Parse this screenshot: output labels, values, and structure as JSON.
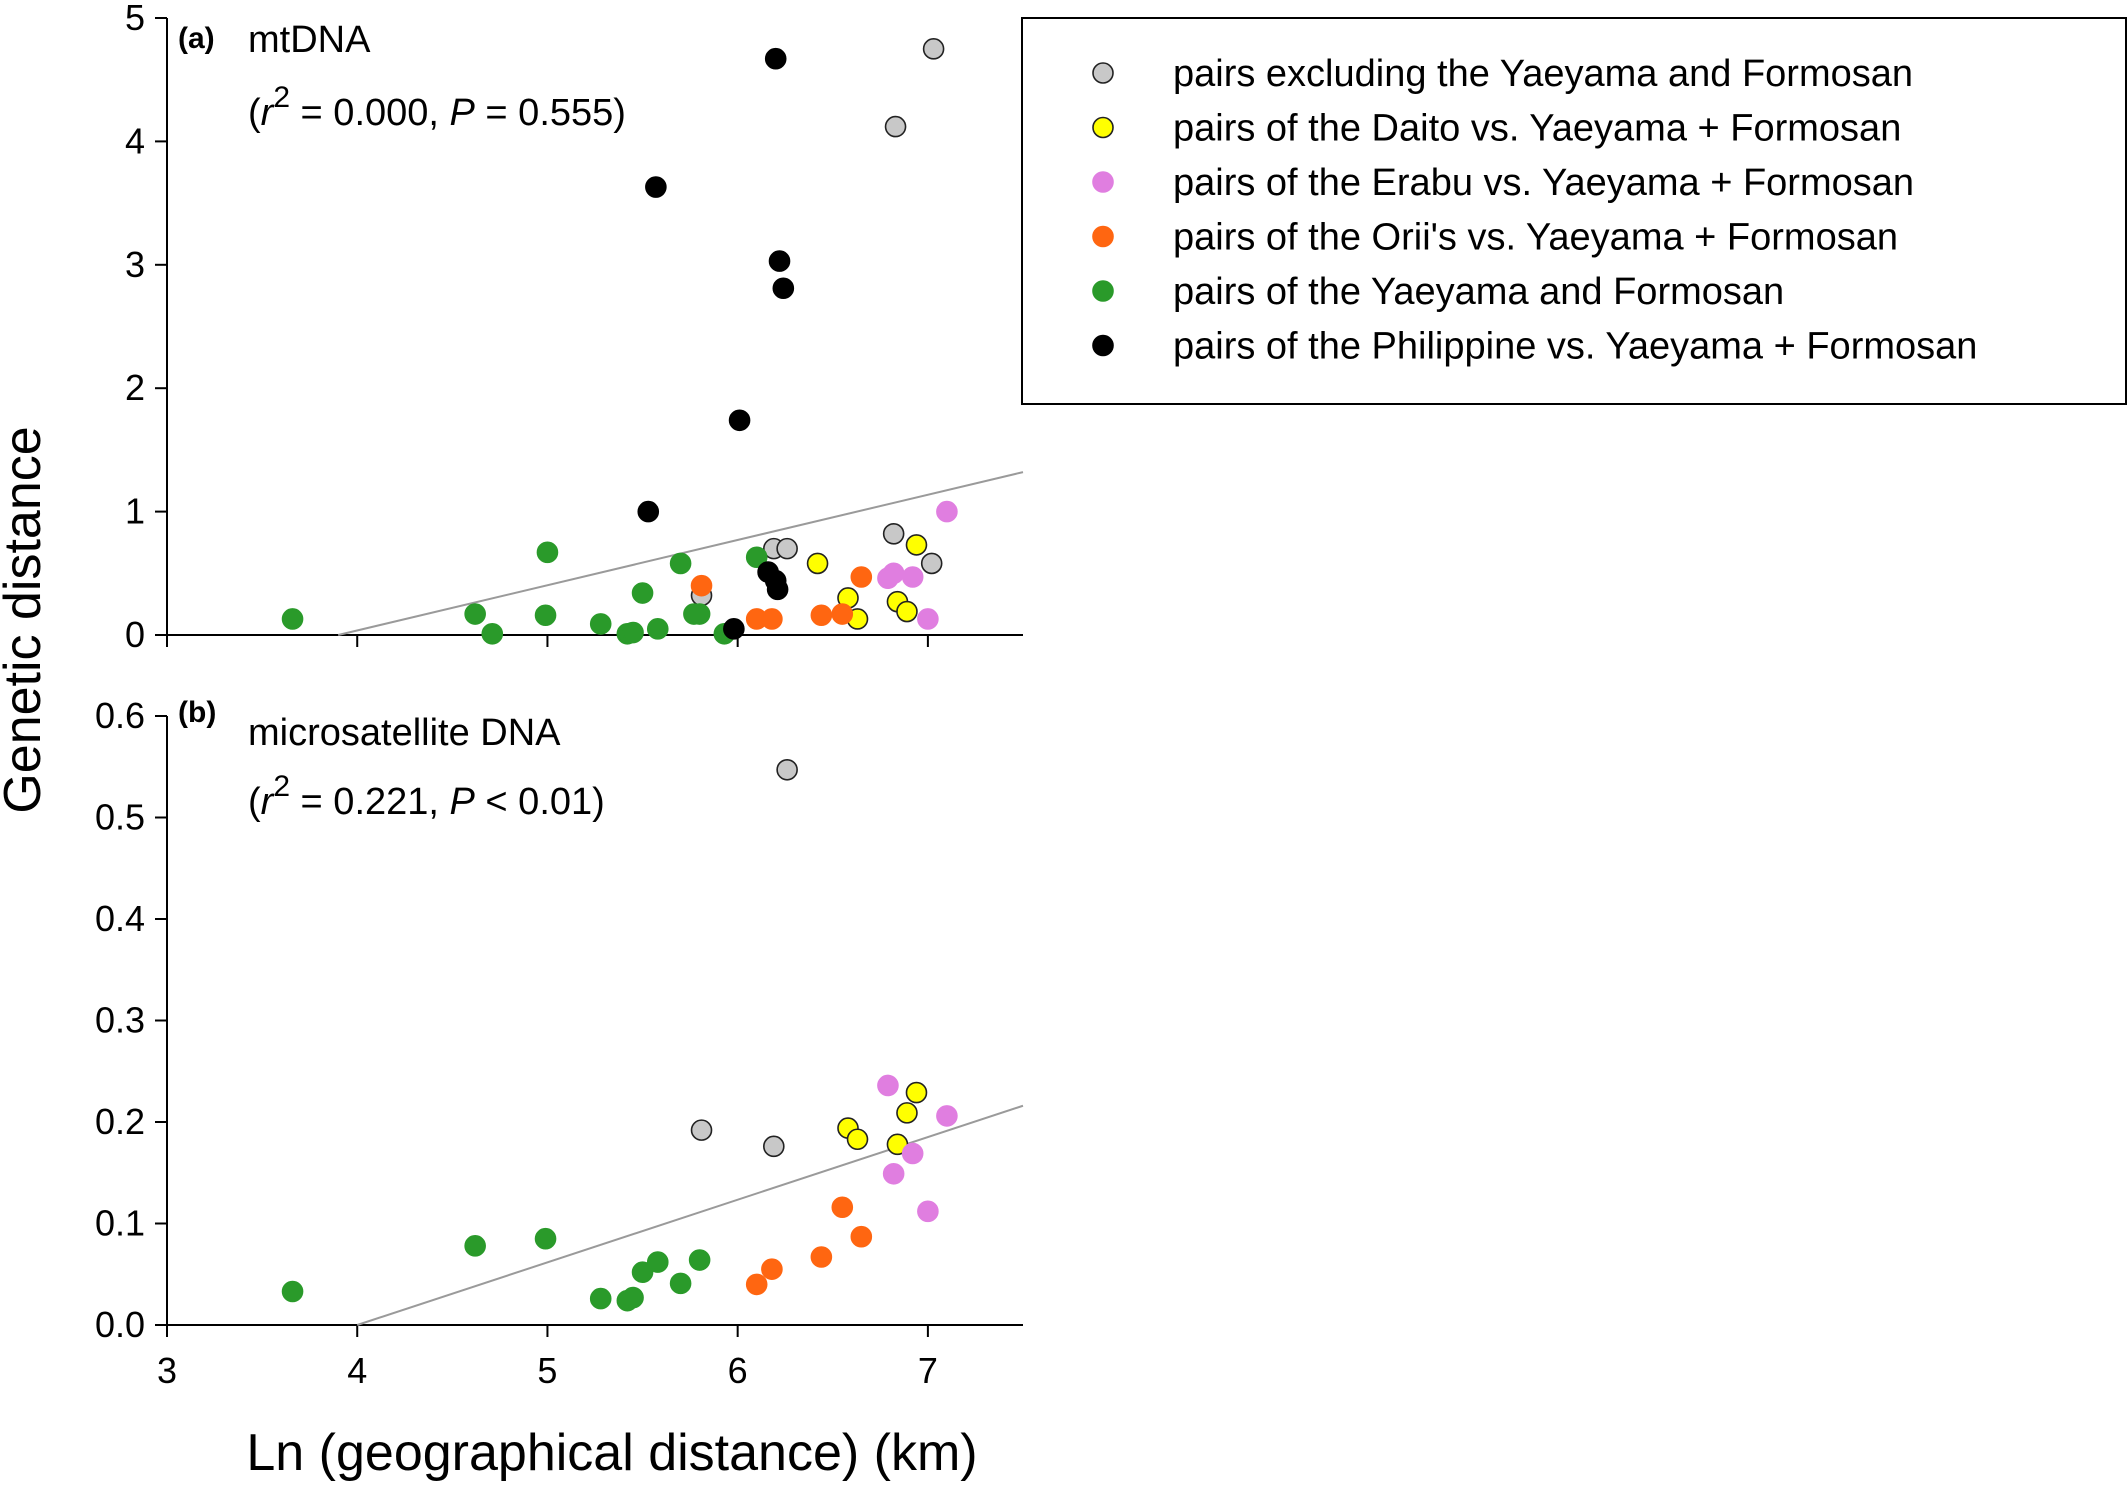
{
  "figure": {
    "xlabel": "Ln (geographical distance) (km)",
    "ylabel": "Genetic distance"
  },
  "legend": {
    "placement": "top-right",
    "items": [
      {
        "name": "pairs excluding the Yaeyama and Formosan",
        "color": "#c8c8c8"
      },
      {
        "name": "pairs of the Daito vs. Yaeyama + Formosan",
        "color": "#ffff00"
      },
      {
        "name": "pairs of the Erabu vs. Yaeyama + Formosan",
        "color": "#e07ee0"
      },
      {
        "name": "pairs of the Orii's vs. Yaeyama + Formosan",
        "color": "#ff6611"
      },
      {
        "name": "pairs of the Yaeyama and Formosan",
        "color": "#2a9a2a"
      },
      {
        "name": "pairs of the Philippine vs. Yaeyama + Formosan",
        "color": "#000000"
      }
    ]
  },
  "chart_data": [
    {
      "type": "scatter",
      "panel": "(a)",
      "name": "mtDNA",
      "stat": {
        "r2": "0.000",
        "p_op": "=",
        "p": "0.555"
      },
      "xlim": [
        3,
        7.5
      ],
      "ylim": [
        0,
        5
      ],
      "xticks": [
        3,
        4,
        5,
        6,
        7
      ],
      "yticks": [
        0,
        1,
        2,
        3,
        4,
        5
      ],
      "ytick_labels": [
        "0",
        "1",
        "2",
        "3",
        "4",
        "5"
      ],
      "show_xtick_labels": false,
      "grid": false,
      "regression": {
        "x": [
          3.9,
          7.5
        ],
        "y": [
          0.0,
          1.32
        ]
      },
      "series": [
        {
          "name": "pairs excluding the Yaeyama and Formosan",
          "color": "#c8c8c8",
          "x": [
            5.81,
            6.19,
            6.26,
            6.82,
            7.02,
            6.83,
            7.03
          ],
          "y": [
            0.32,
            0.7,
            0.7,
            0.82,
            0.58,
            4.12,
            4.75
          ]
        },
        {
          "name": "pairs of the Daito vs. Yaeyama + Formosan",
          "color": "#ffff00",
          "x": [
            6.42,
            6.58,
            6.63,
            6.84,
            6.89,
            6.94
          ],
          "y": [
            0.58,
            0.3,
            0.13,
            0.27,
            0.19,
            0.73
          ]
        },
        {
          "name": "pairs of the Erabu vs. Yaeyama + Formosan",
          "color": "#e07ee0",
          "x": [
            6.79,
            6.82,
            6.92,
            7.0,
            7.1
          ],
          "y": [
            0.46,
            0.5,
            0.47,
            0.13,
            1.0
          ]
        },
        {
          "name": "pairs of the Orii's vs. Yaeyama + Formosan",
          "color": "#ff6611",
          "x": [
            5.81,
            6.1,
            6.18,
            6.44,
            6.55,
            6.65
          ],
          "y": [
            0.4,
            0.13,
            0.13,
            0.16,
            0.17,
            0.47
          ]
        },
        {
          "name": "pairs of the Yaeyama and Formosan",
          "color": "#2a9a2a",
          "x": [
            3.66,
            4.62,
            4.71,
            4.99,
            5.0,
            5.28,
            5.42,
            5.45,
            5.5,
            5.58,
            5.7,
            5.77,
            5.8,
            5.93,
            6.1
          ],
          "y": [
            0.13,
            0.17,
            0.01,
            0.16,
            0.67,
            0.09,
            0.01,
            0.02,
            0.34,
            0.05,
            0.58,
            0.17,
            0.17,
            0.01,
            0.63
          ]
        },
        {
          "name": "pairs of the Philippine vs. Yaeyama + Formosan",
          "color": "#000000",
          "x": [
            5.53,
            5.57,
            5.98,
            6.01,
            6.16,
            6.2,
            6.21,
            6.22,
            6.24,
            6.2
          ],
          "y": [
            1.0,
            3.63,
            0.05,
            1.74,
            0.51,
            0.44,
            0.37,
            3.03,
            2.81,
            4.67
          ]
        }
      ]
    },
    {
      "type": "scatter",
      "panel": "(b)",
      "name": "microsatellite DNA",
      "stat": {
        "r2": "0.221",
        "p_op": "<",
        "p": "0.01"
      },
      "xlim": [
        3,
        7.5
      ],
      "ylim": [
        0,
        0.6
      ],
      "xticks": [
        3,
        4,
        5,
        6,
        7
      ],
      "xtick_labels": [
        "3",
        "4",
        "5",
        "6",
        "7"
      ],
      "yticks": [
        0,
        0.1,
        0.2,
        0.3,
        0.4,
        0.5,
        0.6
      ],
      "ytick_labels": [
        "0.0",
        "0.1",
        "0.2",
        "0.3",
        "0.4",
        "0.5",
        "0.6"
      ],
      "show_xtick_labels": true,
      "grid": false,
      "regression": {
        "x": [
          4.0,
          7.5
        ],
        "y": [
          0.0,
          0.216
        ]
      },
      "series": [
        {
          "name": "pairs excluding the Yaeyama and Formosan",
          "color": "#c8c8c8",
          "x": [
            5.81,
            6.19,
            6.26
          ],
          "y": [
            0.192,
            0.176,
            0.547
          ]
        },
        {
          "name": "pairs of the Daito vs. Yaeyama + Formosan",
          "color": "#ffff00",
          "x": [
            6.58,
            6.63,
            6.84,
            6.89,
            6.94
          ],
          "y": [
            0.194,
            0.183,
            0.178,
            0.209,
            0.229
          ]
        },
        {
          "name": "pairs of the Erabu vs. Yaeyama + Formosan",
          "color": "#e07ee0",
          "x": [
            6.79,
            6.82,
            6.92,
            7.0,
            7.1
          ],
          "y": [
            0.236,
            0.149,
            0.169,
            0.112,
            0.206
          ]
        },
        {
          "name": "pairs of the Orii's vs. Yaeyama + Formosan",
          "color": "#ff6611",
          "x": [
            6.1,
            6.18,
            6.44,
            6.55,
            6.65
          ],
          "y": [
            0.04,
            0.055,
            0.067,
            0.116,
            0.087
          ]
        },
        {
          "name": "pairs of the Yaeyama and Formosan",
          "color": "#2a9a2a",
          "x": [
            3.66,
            4.62,
            4.99,
            5.28,
            5.42,
            5.45,
            5.5,
            5.58,
            5.7,
            5.8
          ],
          "y": [
            0.033,
            0.078,
            0.085,
            0.026,
            0.024,
            0.027,
            0.052,
            0.062,
            0.041,
            0.064
          ]
        }
      ]
    }
  ]
}
